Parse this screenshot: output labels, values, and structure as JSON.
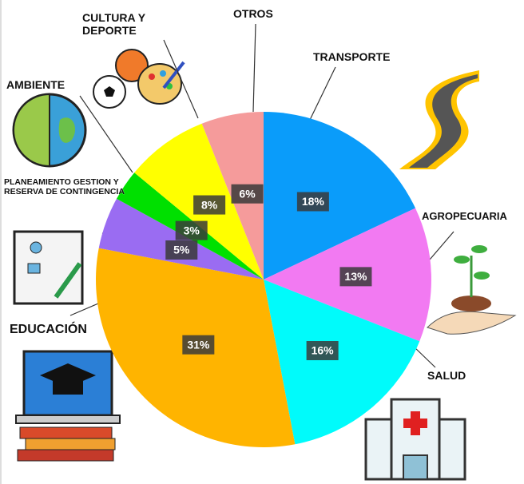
{
  "chart_data": {
    "type": "pie",
    "categories": [
      "TRANSPORTE",
      "AGROPECUARIA",
      "SALUD",
      "EDUCACIÓN",
      "PLANEAMIENTO GESTION Y RESERVA DE CONTINGENCIA",
      "AMBIENTE",
      "CULTURA Y DEPORTE",
      "OTROS"
    ],
    "values": [
      18,
      13,
      16,
      31,
      5,
      3,
      8,
      6
    ],
    "value_labels": [
      "18%",
      "13%",
      "16%",
      "31%",
      "5%",
      "3%",
      "8%",
      "6%"
    ],
    "colors": [
      "#0a9cfa",
      "#f27af2",
      "#00fbfb",
      "#ffb400",
      "#9a6cf2",
      "#00e000",
      "#ffff00",
      "#f59b9b"
    ]
  }
}
